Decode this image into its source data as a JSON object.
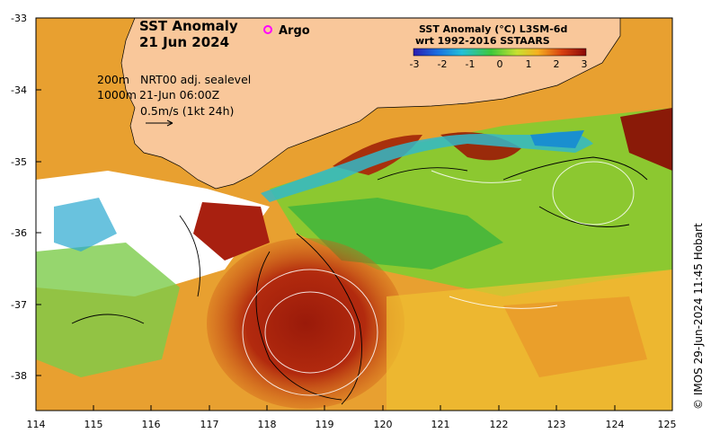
{
  "title": {
    "line1": "SST Anomaly",
    "line2": "21 Jun 2024"
  },
  "argo_label": "Argo",
  "legend": {
    "title_line1": "SST Anomaly (°C) L3SM-6d",
    "title_line2": "wrt 1992-2016 SSTAARS",
    "ticks": [
      "-3",
      "-2",
      "-1",
      "0",
      "1",
      "2",
      "3"
    ],
    "colors": [
      "#2a1bb0",
      "#1a6fe0",
      "#23c0d8",
      "#3ec83a",
      "#c8e030",
      "#f5b020",
      "#d84010",
      "#8a0808"
    ]
  },
  "annotations": {
    "depth1": "200m",
    "depth2": "1000m",
    "source": "NRT00 adj. sealevel",
    "time": "21-Jun 06:00Z",
    "scale": "0.5m/s (1kt 24h)"
  },
  "credit": "© IMOS 29-Jun-2024 11:45 Hobart",
  "axes": {
    "lon_labels": [
      "114",
      "115",
      "116",
      "117",
      "118",
      "119",
      "120",
      "121",
      "122",
      "123",
      "124",
      "125"
    ],
    "lat_labels": [
      "-33",
      "-34",
      "-35",
      "-36",
      "-37",
      "-38"
    ]
  },
  "land_color": "#f9c79a"
}
